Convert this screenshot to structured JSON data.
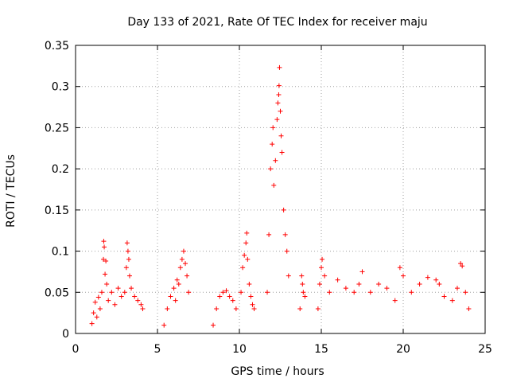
{
  "chart_data": {
    "type": "scatter",
    "title": "Day 133 of 2021, Rate Of TEC Index for receiver maju",
    "xlabel": "GPS time / hours",
    "ylabel": "ROTI / TECUs",
    "xlim": [
      0,
      25
    ],
    "ylim": [
      0,
      0.35
    ],
    "xticks": [
      0,
      5,
      10,
      15,
      20,
      25
    ],
    "xtick_labels": [
      "0",
      "5",
      "10",
      "15",
      "20",
      "25"
    ],
    "yticks": [
      0,
      0.05,
      0.1,
      0.15,
      0.2,
      0.25,
      0.3,
      0.35
    ],
    "ytick_labels": [
      "0",
      "0.05",
      "0.1",
      "0.15",
      "0.2",
      "0.25",
      "0.3",
      "0.35"
    ],
    "grid": true,
    "marker": "+",
    "color": "#ff0000",
    "series": [
      {
        "name": "ROTI",
        "points": [
          [
            1.0,
            0.012
          ],
          [
            1.1,
            0.025
          ],
          [
            1.2,
            0.038
          ],
          [
            1.3,
            0.02
          ],
          [
            1.4,
            0.044
          ],
          [
            1.5,
            0.03
          ],
          [
            1.6,
            0.05
          ],
          [
            1.7,
            0.09
          ],
          [
            1.72,
            0.112
          ],
          [
            1.75,
            0.105
          ],
          [
            1.8,
            0.072
          ],
          [
            1.85,
            0.088
          ],
          [
            1.9,
            0.06
          ],
          [
            2.0,
            0.04
          ],
          [
            2.2,
            0.05
          ],
          [
            2.4,
            0.035
          ],
          [
            2.6,
            0.055
          ],
          [
            2.8,
            0.045
          ],
          [
            3.0,
            0.05
          ],
          [
            3.1,
            0.08
          ],
          [
            3.15,
            0.11
          ],
          [
            3.2,
            0.1
          ],
          [
            3.25,
            0.09
          ],
          [
            3.3,
            0.07
          ],
          [
            3.4,
            0.055
          ],
          [
            3.6,
            0.045
          ],
          [
            3.8,
            0.04
          ],
          [
            4.0,
            0.035
          ],
          [
            4.1,
            0.03
          ],
          [
            5.4,
            0.01
          ],
          [
            5.6,
            0.03
          ],
          [
            5.8,
            0.045
          ],
          [
            6.0,
            0.055
          ],
          [
            6.1,
            0.04
          ],
          [
            6.2,
            0.065
          ],
          [
            6.3,
            0.06
          ],
          [
            6.4,
            0.08
          ],
          [
            6.5,
            0.09
          ],
          [
            6.6,
            0.1
          ],
          [
            6.7,
            0.085
          ],
          [
            6.8,
            0.07
          ],
          [
            6.9,
            0.05
          ],
          [
            8.4,
            0.01
          ],
          [
            8.6,
            0.03
          ],
          [
            8.8,
            0.045
          ],
          [
            9.0,
            0.05
          ],
          [
            9.2,
            0.052
          ],
          [
            9.4,
            0.045
          ],
          [
            9.6,
            0.04
          ],
          [
            9.8,
            0.03
          ],
          [
            10.1,
            0.05
          ],
          [
            10.2,
            0.08
          ],
          [
            10.3,
            0.095
          ],
          [
            10.4,
            0.11
          ],
          [
            10.45,
            0.122
          ],
          [
            10.5,
            0.09
          ],
          [
            10.6,
            0.06
          ],
          [
            10.7,
            0.045
          ],
          [
            10.8,
            0.035
          ],
          [
            10.9,
            0.03
          ],
          [
            11.7,
            0.05
          ],
          [
            11.8,
            0.12
          ],
          [
            11.9,
            0.2
          ],
          [
            12.0,
            0.23
          ],
          [
            12.05,
            0.25
          ],
          [
            12.1,
            0.18
          ],
          [
            12.2,
            0.21
          ],
          [
            12.3,
            0.26
          ],
          [
            12.35,
            0.28
          ],
          [
            12.4,
            0.29
          ],
          [
            12.42,
            0.301
          ],
          [
            12.45,
            0.323
          ],
          [
            12.5,
            0.27
          ],
          [
            12.55,
            0.24
          ],
          [
            12.6,
            0.22
          ],
          [
            12.7,
            0.15
          ],
          [
            12.8,
            0.12
          ],
          [
            12.9,
            0.1
          ],
          [
            13.0,
            0.07
          ],
          [
            13.7,
            0.03
          ],
          [
            13.8,
            0.07
          ],
          [
            13.85,
            0.06
          ],
          [
            13.9,
            0.05
          ],
          [
            14.0,
            0.045
          ],
          [
            14.8,
            0.03
          ],
          [
            14.9,
            0.06
          ],
          [
            15.0,
            0.08
          ],
          [
            15.05,
            0.09
          ],
          [
            15.2,
            0.07
          ],
          [
            15.5,
            0.05
          ],
          [
            16.0,
            0.065
          ],
          [
            16.5,
            0.055
          ],
          [
            17.0,
            0.05
          ],
          [
            17.3,
            0.06
          ],
          [
            17.5,
            0.075
          ],
          [
            18.0,
            0.05
          ],
          [
            18.5,
            0.06
          ],
          [
            19.0,
            0.055
          ],
          [
            19.5,
            0.04
          ],
          [
            19.8,
            0.08
          ],
          [
            20.0,
            0.07
          ],
          [
            20.5,
            0.05
          ],
          [
            21.0,
            0.06
          ],
          [
            21.5,
            0.068
          ],
          [
            22.0,
            0.065
          ],
          [
            22.2,
            0.06
          ],
          [
            22.5,
            0.045
          ],
          [
            23.0,
            0.04
          ],
          [
            23.3,
            0.055
          ],
          [
            23.5,
            0.085
          ],
          [
            23.6,
            0.082
          ],
          [
            23.8,
            0.05
          ],
          [
            24.0,
            0.03
          ]
        ]
      }
    ]
  }
}
